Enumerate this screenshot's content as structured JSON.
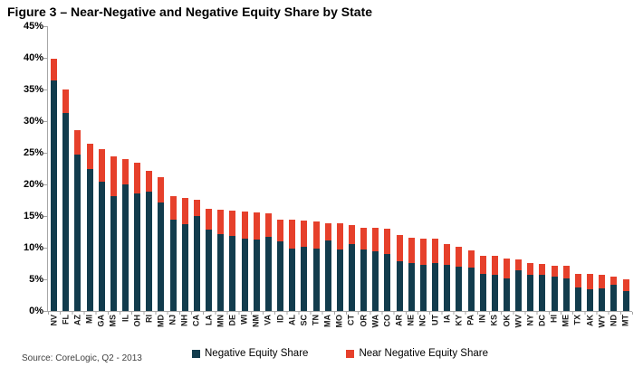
{
  "title": "Figure 3 – Near-Negative and Negative Equity Share by State",
  "source_note": "Source: CoreLogic, Q2 - 2013",
  "legend": {
    "negative_label": "Negative Equity Share",
    "near_negative_label": "Near Negative Equity Share"
  },
  "colors": {
    "negative": "#123C4D",
    "near_negative": "#E6402B",
    "axis": "#a6a6a6"
  },
  "chart_data": {
    "type": "bar",
    "stacked": true,
    "title": "Figure 3 – Near-Negative and Negative Equity Share by State",
    "xlabel": "",
    "ylabel": "",
    "ylim": [
      0,
      45
    ],
    "ytick_step": 5,
    "y_ticks": [
      "45%",
      "40%",
      "35%",
      "30%",
      "25%",
      "20%",
      "15%",
      "10%",
      "5%",
      "0%"
    ],
    "grid": false,
    "legend_position": "bottom",
    "categories": [
      "NV",
      "FL",
      "AZ",
      "MI",
      "GA",
      "MS",
      "IL",
      "OH",
      "RI",
      "MD",
      "NJ",
      "NH",
      "CA",
      "LA",
      "MN",
      "DE",
      "WI",
      "NM",
      "VA",
      "ID",
      "AL",
      "SC",
      "TN",
      "MA",
      "MO",
      "CT",
      "OR",
      "WA",
      "CO",
      "AR",
      "NE",
      "NC",
      "UT",
      "IA",
      "KY",
      "PA",
      "IN",
      "KS",
      "OK",
      "WV",
      "NY",
      "DC",
      "HI",
      "ME",
      "TX",
      "AK",
      "WY",
      "ND",
      "MT"
    ],
    "series": [
      {
        "name": "Negative Equity Share",
        "color": "#123C4D",
        "values": [
          36.4,
          31.3,
          24.7,
          22.4,
          20.4,
          18.2,
          20.0,
          18.6,
          18.8,
          17.1,
          14.4,
          13.7,
          15.0,
          12.9,
          12.1,
          11.8,
          11.5,
          11.3,
          11.7,
          11.0,
          9.9,
          10.1,
          9.9,
          11.1,
          9.7,
          10.6,
          9.7,
          9.5,
          9.0,
          7.9,
          7.6,
          7.3,
          7.6,
          7.3,
          7.0,
          6.9,
          5.8,
          5.7,
          5.2,
          6.4,
          5.7,
          5.7,
          5.5,
          5.1,
          3.7,
          3.4,
          3.6,
          4.1,
          3.2
        ]
      },
      {
        "name": "Near Negative Equity Share",
        "color": "#E6402B",
        "values": [
          3.4,
          3.7,
          3.9,
          4.0,
          5.2,
          6.2,
          4.0,
          4.8,
          3.3,
          4.1,
          3.7,
          4.2,
          2.6,
          3.2,
          3.9,
          4.1,
          4.2,
          4.3,
          3.7,
          3.5,
          4.5,
          4.2,
          4.2,
          2.7,
          4.1,
          3.0,
          3.5,
          3.6,
          4.0,
          4.1,
          4.0,
          4.2,
          3.8,
          3.3,
          3.2,
          2.7,
          2.9,
          3.0,
          3.1,
          1.8,
          1.9,
          1.8,
          1.7,
          2.0,
          2.2,
          2.4,
          2.1,
          1.3,
          1.8
        ]
      }
    ]
  }
}
